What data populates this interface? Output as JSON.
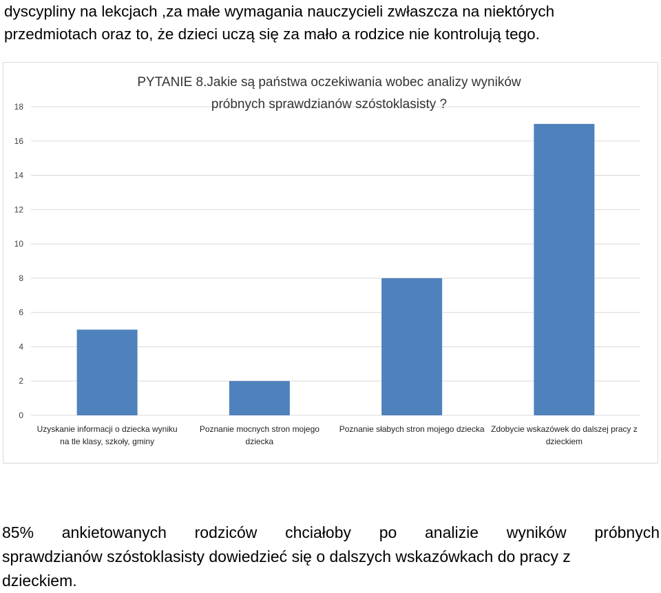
{
  "text_top": {
    "line1": "dyscypliny na lekcjach ,za małe wymagania nauczycieli zwłaszcza na niektórych",
    "line2": "przedmiotach oraz to, że dzieci uczą się za mało a rodzice nie kontrolują tego."
  },
  "text_bottom": {
    "line1": "85% ankietowanych rodziców chciałoby po analizie wyników próbnych",
    "line2": "sprawdzianów szóstoklasisty dowiedzieć się o dalszych wskazówkach do pracy z",
    "line3": "dzieckiem."
  },
  "chart_data": {
    "type": "bar",
    "title_lines": [
      "PYTANIE 8.Jakie są państwa oczekiwania wobec analizy wyników",
      "próbnych sprawdzianów szóstoklasisty ?"
    ],
    "categories": [
      [
        "Uzyskanie informacji o dziecka wyniku",
        "na tle klasy, szkoły, gminy"
      ],
      [
        "Poznanie mocnych stron mojego",
        "dziecka"
      ],
      [
        "Poznanie słabych stron mojego dziecka"
      ],
      [
        "Zdobycie wskazówek do dalszej pracy z",
        "dzieckiem"
      ]
    ],
    "values": [
      5,
      2,
      8,
      17
    ],
    "ylim": [
      0,
      18
    ],
    "yticks": [
      0,
      2,
      4,
      6,
      8,
      10,
      12,
      14,
      16,
      18
    ],
    "grid": true,
    "bar_color": "#4f81bd",
    "grid_color": "#d9d9d9"
  }
}
